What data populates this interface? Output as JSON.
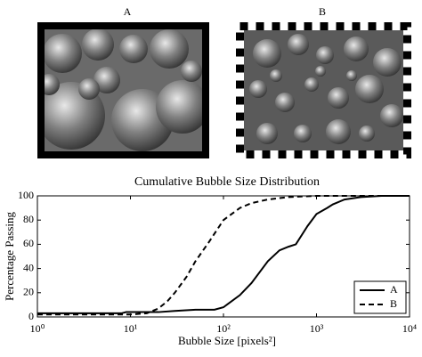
{
  "panels": [
    "A",
    "B"
  ],
  "chart_data": {
    "type": "line",
    "title": "Cumulative Bubble Size Distribution",
    "xlabel": "Bubble Size [pixels²]",
    "ylabel": "Percentage Passing",
    "xscale": "log",
    "xlim": [
      1,
      10000
    ],
    "xticks": [
      {
        "value": 1,
        "label": "10⁰"
      },
      {
        "value": 10,
        "label": "10¹"
      },
      {
        "value": 100,
        "label": "10²"
      },
      {
        "value": 1000,
        "label": "10³"
      },
      {
        "value": 10000,
        "label": "10⁴"
      }
    ],
    "ylim": [
      0,
      100
    ],
    "yticks": [
      0,
      20,
      40,
      60,
      80,
      100
    ],
    "grid": false,
    "legend": "lower right",
    "series": [
      {
        "name": "A",
        "color": "#000000",
        "linestyle": "solid",
        "x": [
          1,
          8,
          9,
          20,
          30,
          50,
          80,
          100,
          150,
          200,
          300,
          400,
          500,
          600,
          800,
          1000,
          1300,
          1500,
          2000,
          3000,
          5000,
          10000
        ],
        "values": [
          3,
          3,
          4,
          4,
          5,
          6,
          6,
          8,
          18,
          28,
          46,
          55,
          58,
          60,
          75,
          85,
          90,
          93,
          97,
          99,
          100,
          100
        ]
      },
      {
        "name": "B",
        "color": "#000000",
        "linestyle": "dashed",
        "x": [
          1,
          10,
          15,
          20,
          25,
          30,
          40,
          50,
          70,
          100,
          150,
          200,
          300,
          500,
          1000,
          10000
        ],
        "values": [
          2,
          2,
          3,
          7,
          13,
          20,
          33,
          46,
          62,
          80,
          90,
          94,
          97,
          99,
          100,
          100
        ]
      }
    ]
  }
}
